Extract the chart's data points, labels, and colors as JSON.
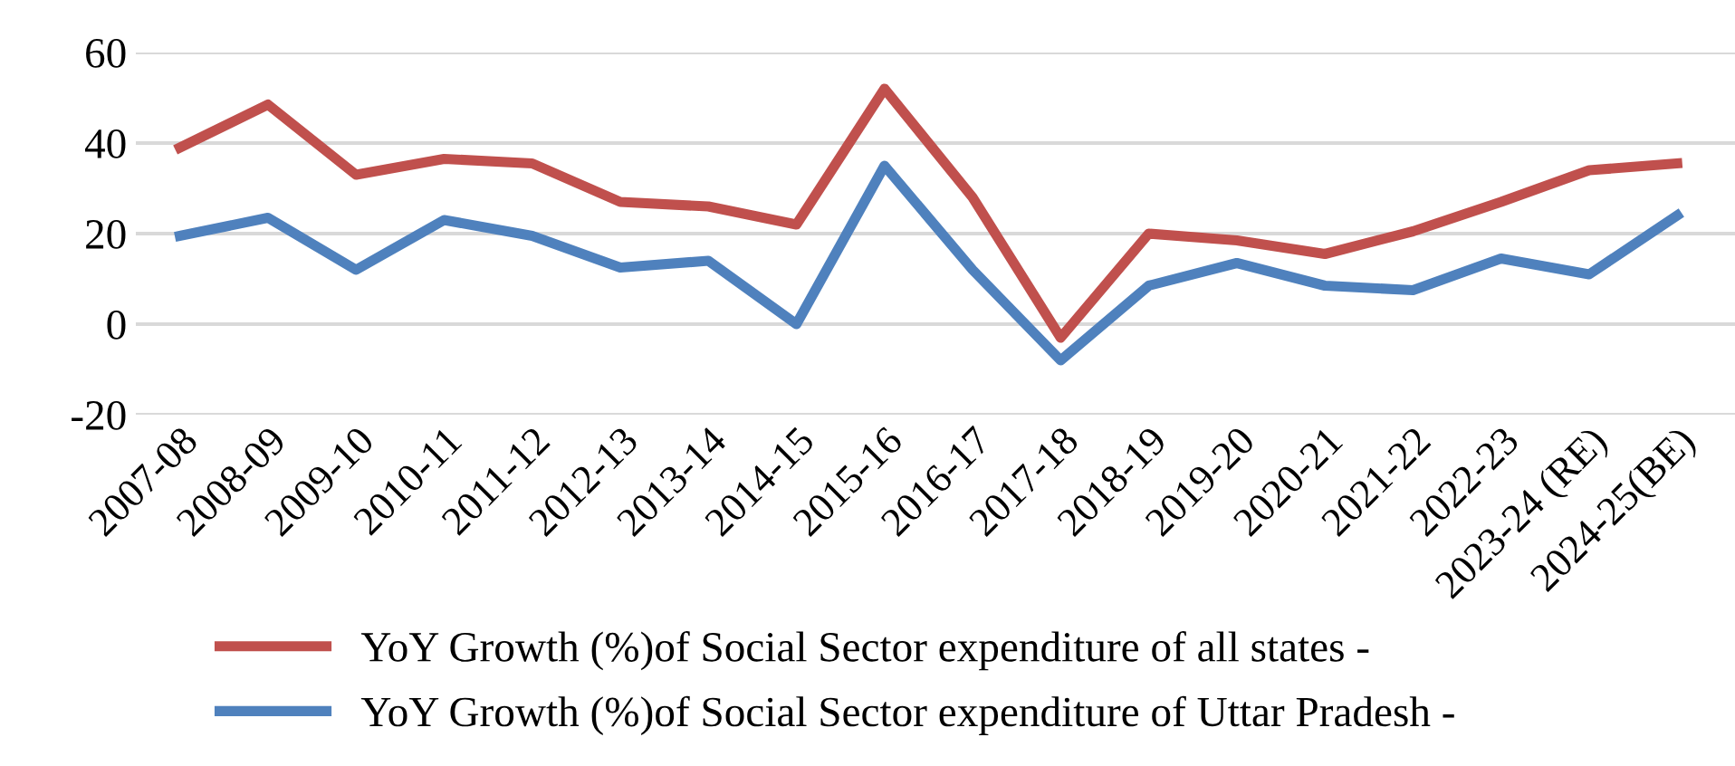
{
  "chart_data": {
    "type": "line",
    "categories": [
      "2007-08",
      "2008-09",
      "2009-10",
      "2010-11",
      "2011-12",
      "2012-13",
      "2013-14",
      "2014-15",
      "2015-16",
      "2016-17",
      "2017-18",
      "2018-19",
      "2019-20",
      "2020-21",
      "2021-22",
      "2022-23",
      "2023-24 (RE)",
      "2024-25(BE)"
    ],
    "series": [
      {
        "name": "YoY Growth (%)of Social Sector expenditure of all states -",
        "color": "#c0504d",
        "values": [
          39,
          48.5,
          33,
          36.5,
          35.5,
          27,
          26,
          22,
          52,
          28,
          -3,
          20,
          18.5,
          15.5,
          20.5,
          27,
          34,
          35.5
        ]
      },
      {
        "name": "YoY Growth (%)of Social Sector expenditure of Uttar Pradesh -",
        "color": "#4f81bd",
        "values": [
          19.5,
          23.5,
          12,
          23,
          19.5,
          12.5,
          14,
          0,
          35,
          12,
          -8,
          8.5,
          13.5,
          8.5,
          7.5,
          14.5,
          11,
          24
        ]
      }
    ],
    "ylim": [
      -20,
      60
    ],
    "yticks": [
      -20,
      0,
      20,
      40,
      60
    ],
    "grid": "y",
    "legend": "bottom",
    "marker": "none",
    "line_style": "solid"
  }
}
